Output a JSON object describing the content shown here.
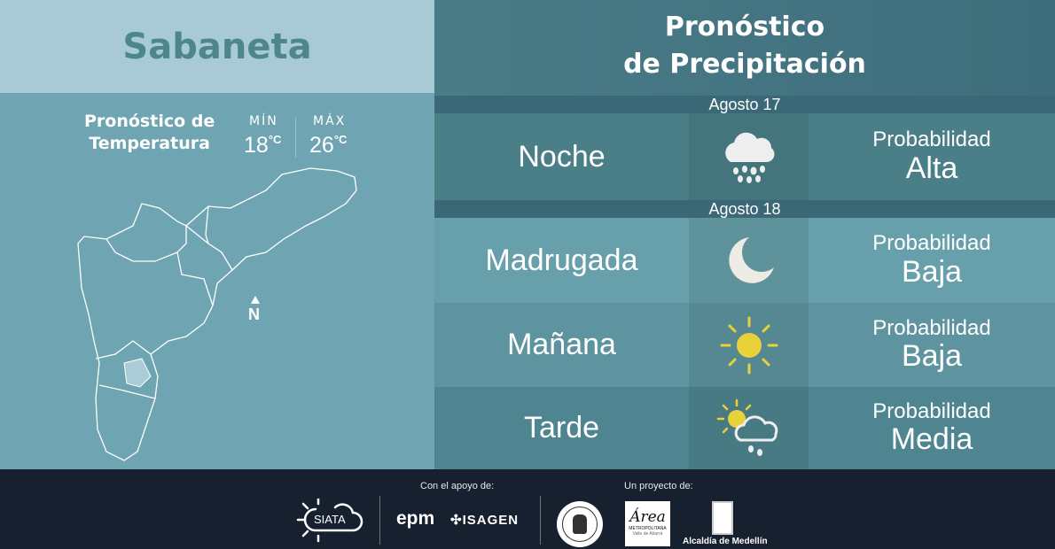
{
  "location": "Sabaneta",
  "temperature": {
    "title_line1": "Pronóstico de",
    "title_line2": "Temperatura",
    "min_label": "MÍN",
    "min_value": "18",
    "max_label": "MÁX",
    "max_value": "26",
    "unit": "°C"
  },
  "map": {
    "north_label": "N"
  },
  "precipitation": {
    "title_line1": "Pronóstico",
    "title_line2": "de Precipitación",
    "dates": [
      "Agosto 17",
      "Agosto 18"
    ],
    "rows": [
      {
        "period": "Noche",
        "icon": "rain-cloud-icon",
        "label": "Probabilidad",
        "level": "Alta"
      },
      {
        "period": "Madrugada",
        "icon": "moon-icon",
        "label": "Probabilidad",
        "level": "Baja"
      },
      {
        "period": "Mañana",
        "icon": "sun-icon",
        "label": "Probabilidad",
        "level": "Baja"
      },
      {
        "period": "Tarde",
        "icon": "sun-rain-cloud-icon",
        "label": "Probabilidad",
        "level": "Media"
      }
    ]
  },
  "footer": {
    "support_label": "Con el apoyo de:",
    "project_label": "Un proyecto de:",
    "logos": {
      "siata": "SIATA",
      "epm": "epm",
      "isagen": "ISAGEN",
      "area_script": "Área",
      "area_sub1": "METROPOLITANA",
      "area_sub2": "Valle de Aburrá",
      "alcaldia": "Alcaldía de Medellín"
    }
  }
}
